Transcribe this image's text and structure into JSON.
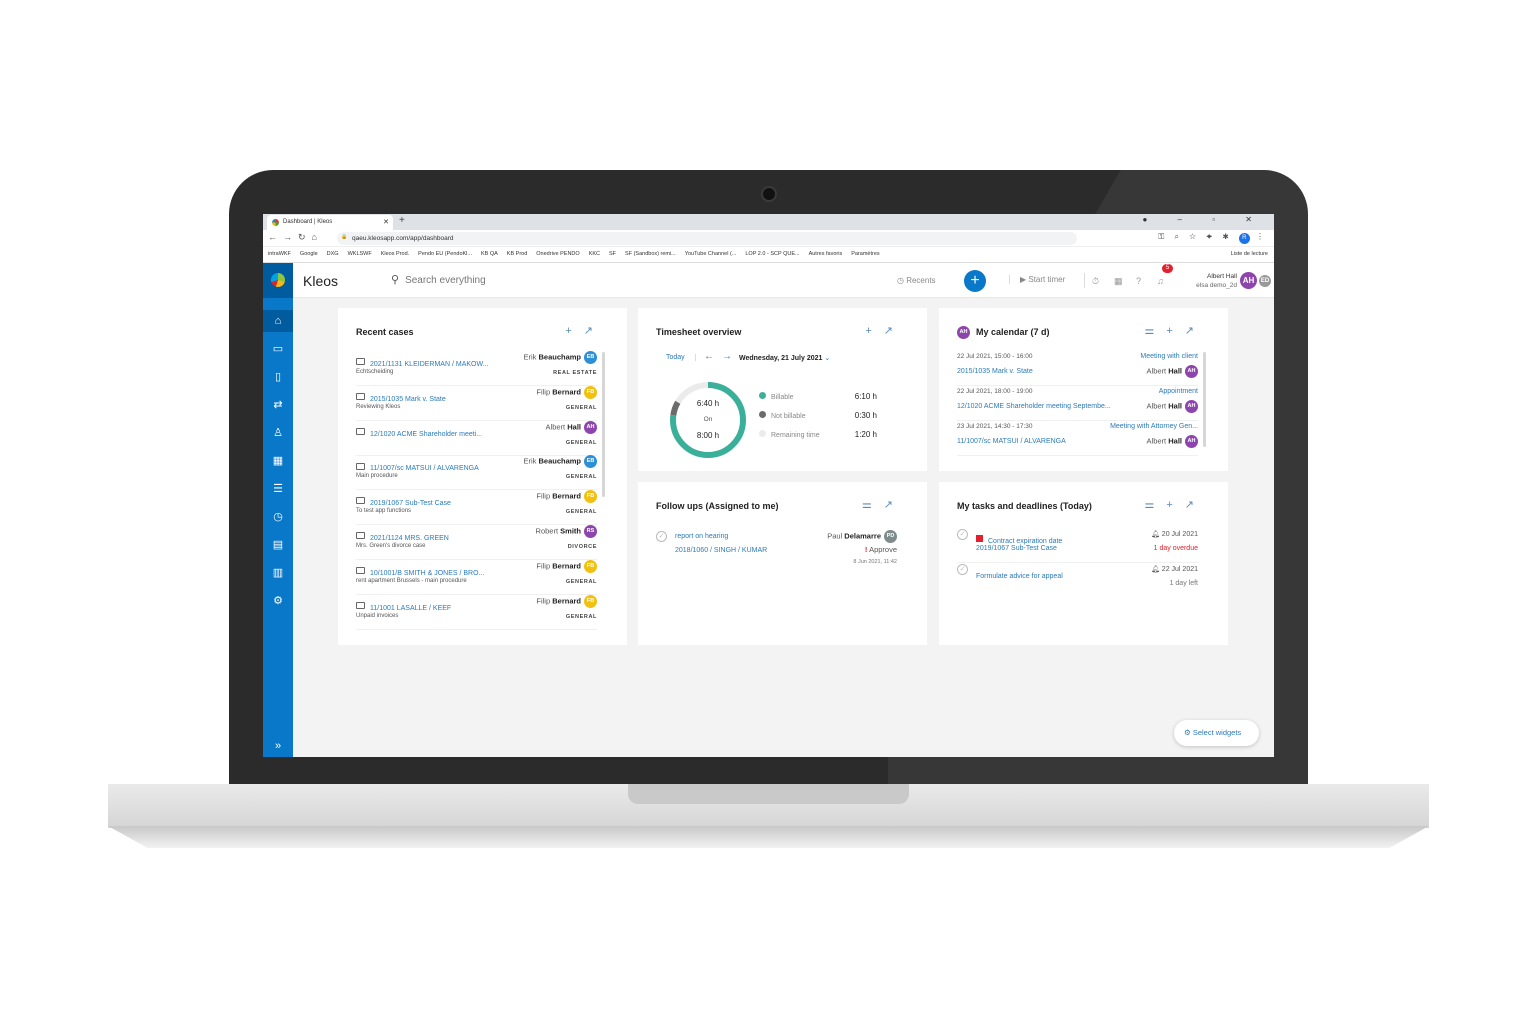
{
  "browser": {
    "tab_title": "Dashboard | Kleos",
    "url": "qaeu.kleosapp.com/app/dashboard",
    "profile_initial": "R",
    "bookmarks": [
      "intraWKF",
      "Google",
      "DXG",
      "WKLSWF",
      "Kleos Prod.",
      "Pendo EU (PendoKl...",
      "KB QA",
      "KB Prod",
      "Onedrive PENDO",
      "KKC",
      "SF",
      "SF (Sandbox) remi...",
      "YouTube Channel (...",
      "LOP 2.0 - SCP QUE...",
      "Autres favoris",
      "Paramètres"
    ],
    "reading_list": "Liste de lecture"
  },
  "header": {
    "brand": "Kleos",
    "search_placeholder": "Search everything",
    "recents": "Recents",
    "start_timer": "Start timer",
    "notification_count": "5",
    "user_name": "Albert Hall",
    "user_sub": "elsa demo_2d",
    "user_initials": "AH",
    "user_initials_2": "ED"
  },
  "colors": {
    "primary": "#0a78c8",
    "sidebar_active": "#005b9f",
    "billable": "#3aaf9a",
    "not_billable": "#6b6b6b",
    "remaining": "#ebebeb",
    "overdue": "#e5202e"
  },
  "sidebar": {
    "items": [
      "home-icon",
      "folder-icon",
      "document-icon",
      "transfer-icon",
      "contact-icon",
      "calendar-icon",
      "tasks-icon",
      "timer-icon",
      "billing-icon",
      "reports-icon",
      "settings-icon"
    ],
    "expand": "expand-icon"
  },
  "recent_cases": {
    "title": "Recent cases",
    "items": [
      {
        "case": "2021/1131 KLEIDERMAN / MAKOW...",
        "desc": "Echtscheiding",
        "first": "Erik",
        "last": "Beauchamp",
        "initials": "EB",
        "color": "#2d8fd5",
        "category": "REAL ESTATE"
      },
      {
        "case": "2015/1035 Mark v. State",
        "desc": "Reviewing Kleos",
        "first": "Filip",
        "last": "Bernard",
        "initials": "FB",
        "color": "#f2c010",
        "category": "GENERAL"
      },
      {
        "case": "12/1020 ACME Shareholder meeti...",
        "desc": "",
        "first": "Albert",
        "last": "Hall",
        "initials": "AH",
        "color": "#8e44ad",
        "category": "GENERAL"
      },
      {
        "case": "11/1007/sc MATSUI / ALVARENGA",
        "desc": "Main procedure",
        "first": "Erik",
        "last": "Beauchamp",
        "initials": "EB",
        "color": "#2d8fd5",
        "category": "GENERAL"
      },
      {
        "case": "2019/1067 Sub-Test Case",
        "desc": "To test app functions",
        "first": "Filip",
        "last": "Bernard",
        "initials": "FB",
        "color": "#f2c010",
        "category": "GENERAL"
      },
      {
        "case": "2021/1124 MRS. GREEN",
        "desc": "Mrs. Green's divorce case",
        "first": "Robert",
        "last": "Smith",
        "initials": "RS",
        "color": "#8e44ad",
        "category": "DIVORCE"
      },
      {
        "case": "10/1001/B SMITH & JONES / BRO...",
        "desc": "rent apartment Brussels - main procedure",
        "first": "Filip",
        "last": "Bernard",
        "initials": "FB",
        "color": "#f2c010",
        "category": "GENERAL"
      },
      {
        "case": "11/1001 LASALLE / KEEF",
        "desc": "Unpaid invoices",
        "first": "Filip",
        "last": "Bernard",
        "initials": "FB",
        "color": "#f2c010",
        "category": "GENERAL"
      }
    ]
  },
  "timesheet": {
    "title": "Timesheet overview",
    "today": "Today",
    "date": "Wednesday, 21 July 2021",
    "total": "6:40 h",
    "on_label": "On",
    "target": "8:00 h",
    "legend": [
      {
        "label": "Billable",
        "value": "6:10 h",
        "minutes": 370
      },
      {
        "label": "Not billable",
        "value": "0:30 h",
        "minutes": 30
      },
      {
        "label": "Remaining time",
        "value": "1:20 h",
        "minutes": 80
      }
    ]
  },
  "calendar": {
    "title": "My calendar (7 d)",
    "owner_initials": "AH",
    "items": [
      {
        "when": "22 Jul 2021, 15:00 - 16:00",
        "subject": "Meeting with client",
        "case": "2015/1035 Mark v. State",
        "first": "Albert",
        "last": "Hall",
        "initials": "AH"
      },
      {
        "when": "22 Jul 2021, 18:00 - 19:00",
        "subject": "Appointment",
        "case": "12/1020 ACME Shareholder meeting Septembe...",
        "first": "Albert",
        "last": "Hall",
        "initials": "AH"
      },
      {
        "when": "23 Jul 2021, 14:30 - 17:30",
        "subject": "Meeting with Attorney Gen...",
        "case": "11/1007/sc MATSUI / ALVARENGA",
        "first": "Albert",
        "last": "Hall",
        "initials": "AH"
      }
    ]
  },
  "followups": {
    "title": "Follow ups (Assigned to me)",
    "items": [
      {
        "title": "report on hearing",
        "case": "2018/1060 / SINGH / KUMAR",
        "first": "Paul",
        "last": "Delamarre",
        "initials": "PD",
        "action": "Approve",
        "date": "8 Jun 2021, 11:42"
      }
    ]
  },
  "tasks": {
    "title": "My tasks and deadlines (Today)",
    "items": [
      {
        "title": "Contract expiration date",
        "case": "2019/1067 Sub-Test Case",
        "date": "20 Jul 2021",
        "status": "1 day overdue",
        "overdue": true
      },
      {
        "title": "Formulate advice for appeal",
        "case": "",
        "date": "22 Jul 2021",
        "status": "1 day left",
        "overdue": false
      }
    ]
  },
  "select_widgets": "Select widgets"
}
